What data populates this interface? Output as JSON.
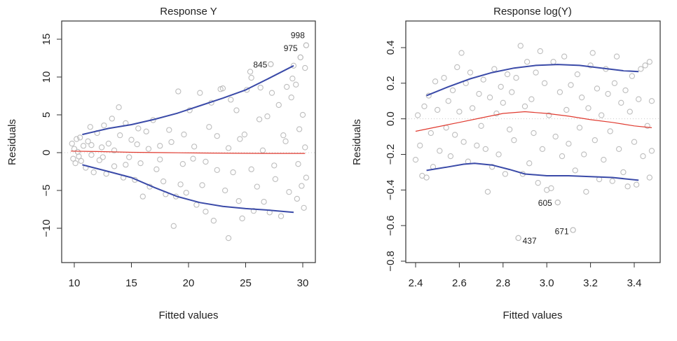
{
  "chart_data": [
    {
      "type": "scatter",
      "title": "Response Y",
      "xlabel": "Fitted values",
      "ylabel": "Residuals",
      "xlim": [
        9.3,
        30.8
      ],
      "ylim": [
        -14,
        17
      ],
      "xticks": [
        "10",
        "15",
        "20",
        "25",
        "30"
      ],
      "yticks": [
        "-10",
        "-5",
        "0",
        "5",
        "10",
        "15"
      ],
      "grid": false,
      "point_color": "#bdbdbd",
      "smooth_color": "#e03a2f",
      "band_color": "#3a4aa8",
      "points": [
        [
          9.8,
          1.2
        ],
        [
          9.9,
          -0.8
        ],
        [
          10.0,
          0.5
        ],
        [
          10.1,
          -1.4
        ],
        [
          10.2,
          1.8
        ],
        [
          10.3,
          0.1
        ],
        [
          10.4,
          -0.5
        ],
        [
          10.5,
          2.0
        ],
        [
          10.6,
          -1.1
        ],
        [
          10.8,
          0.9
        ],
        [
          11.0,
          -2.0
        ],
        [
          11.2,
          1.5
        ],
        [
          11.4,
          3.4
        ],
        [
          11.5,
          -0.3
        ],
        [
          11.7,
          -2.6
        ],
        [
          12.0,
          2.6
        ],
        [
          12.2,
          -1.0
        ],
        [
          12.4,
          0.7
        ],
        [
          12.6,
          3.6
        ],
        [
          12.8,
          -2.8
        ],
        [
          13.0,
          1.2
        ],
        [
          13.3,
          4.5
        ],
        [
          13.5,
          -1.8
        ],
        [
          13.9,
          6.0
        ],
        [
          14.0,
          2.3
        ],
        [
          14.3,
          -3.3
        ],
        [
          14.5,
          3.9
        ],
        [
          14.8,
          -0.6
        ],
        [
          15.0,
          1.7
        ],
        [
          15.3,
          -3.6
        ],
        [
          15.6,
          3.2
        ],
        [
          15.8,
          -1.4
        ],
        [
          16.0,
          -5.8
        ],
        [
          16.3,
          2.8
        ],
        [
          16.6,
          -4.5
        ],
        [
          16.9,
          4.3
        ],
        [
          17.2,
          -2.2
        ],
        [
          17.5,
          0.9
        ],
        [
          17.8,
          -3.8
        ],
        [
          18.0,
          -5.5
        ],
        [
          18.3,
          3.0
        ],
        [
          18.7,
          -9.7
        ],
        [
          18.9,
          -5.8
        ],
        [
          19.1,
          8.1
        ],
        [
          19.3,
          -4.2
        ],
        [
          19.6,
          2.4
        ],
        [
          19.8,
          -5.3
        ],
        [
          20.1,
          5.6
        ],
        [
          20.4,
          -0.8
        ],
        [
          20.7,
          -6.9
        ],
        [
          21.0,
          7.9
        ],
        [
          21.2,
          -4.3
        ],
        [
          21.5,
          -7.8
        ],
        [
          21.8,
          3.4
        ],
        [
          22.0,
          6.6
        ],
        [
          22.2,
          -9.0
        ],
        [
          22.5,
          -2.3
        ],
        [
          22.8,
          8.4
        ],
        [
          23.0,
          8.5
        ],
        [
          23.2,
          -5.0
        ],
        [
          23.5,
          -11.3
        ],
        [
          23.7,
          7.0
        ],
        [
          23.9,
          -2.6
        ],
        [
          24.2,
          5.6
        ],
        [
          24.4,
          -6.4
        ],
        [
          24.7,
          -8.7
        ],
        [
          24.9,
          2.4
        ],
        [
          25.1,
          8.3
        ],
        [
          25.4,
          10.7
        ],
        [
          25.5,
          9.9
        ],
        [
          25.7,
          -7.7
        ],
        [
          26.0,
          -4.5
        ],
        [
          26.2,
          4.4
        ],
        [
          26.3,
          8.6
        ],
        [
          26.6,
          -6.5
        ],
        [
          26.9,
          4.8
        ],
        [
          27.1,
          -7.9
        ],
        [
          27.2,
          11.7
        ],
        [
          27.3,
          7.9
        ],
        [
          27.6,
          -3.5
        ],
        [
          27.9,
          6.3
        ],
        [
          28.1,
          -8.4
        ],
        [
          28.3,
          2.3
        ],
        [
          28.6,
          8.7
        ],
        [
          28.8,
          -5.2
        ],
        [
          29.0,
          7.3
        ],
        [
          29.1,
          9.8
        ],
        [
          29.2,
          11.5
        ],
        [
          29.4,
          9.0
        ],
        [
          29.5,
          -6.1
        ],
        [
          29.7,
          3.1
        ],
        [
          29.8,
          12.6
        ],
        [
          29.9,
          -4.4
        ],
        [
          30.0,
          5.0
        ],
        [
          30.1,
          -7.3
        ],
        [
          30.2,
          11.2
        ],
        [
          30.3,
          14.2
        ],
        [
          30.3,
          -3.3
        ],
        [
          30.2,
          0.7
        ],
        [
          29.6,
          -1.5
        ],
        [
          28.5,
          1.5
        ],
        [
          27.5,
          -1.7
        ],
        [
          26.5,
          0.3
        ],
        [
          25.5,
          -2.2
        ],
        [
          24.5,
          1.8
        ],
        [
          23.5,
          0.6
        ],
        [
          22.5,
          2.2
        ],
        [
          21.5,
          -1.2
        ],
        [
          20.5,
          0.8
        ],
        [
          19.5,
          -1.5
        ],
        [
          18.5,
          1.4
        ],
        [
          17.5,
          -0.9
        ],
        [
          16.5,
          0.5
        ],
        [
          15.5,
          1.1
        ],
        [
          14.5,
          -1.6
        ],
        [
          13.5,
          0.3
        ],
        [
          12.5,
          -0.6
        ],
        [
          11.5,
          1.0
        ]
      ],
      "labeled_points": [
        {
          "label": "998",
          "x": 30.3,
          "y": 14.2
        },
        {
          "label": "975",
          "x": 29.8,
          "y": 12.6
        },
        {
          "label": "845",
          "x": 27.2,
          "y": 11.7
        }
      ],
      "smooth": {
        "x": [
          9.7,
          12,
          15,
          18,
          21,
          24,
          27,
          30.2
        ],
        "y": [
          0.2,
          0.15,
          0.05,
          0.0,
          -0.05,
          -0.08,
          -0.1,
          -0.1
        ]
      },
      "band_upper": {
        "x": [
          10.7,
          13,
          15,
          17,
          19,
          21,
          23,
          25,
          27,
          29.2
        ],
        "y": [
          2.4,
          3.2,
          3.7,
          4.4,
          5.2,
          6.2,
          7.2,
          8.3,
          9.8,
          11.5
        ]
      },
      "band_lower": {
        "x": [
          10.7,
          13,
          15,
          17,
          19,
          21,
          23,
          25,
          27,
          29.2
        ],
        "y": [
          -1.6,
          -2.5,
          -3.3,
          -4.6,
          -5.8,
          -6.6,
          -7.1,
          -7.4,
          -7.6,
          -7.9
        ]
      }
    },
    {
      "type": "scatter",
      "title": "Response log(Y)",
      "xlabel": "Fitted values",
      "ylabel": "Residuals",
      "xlim": [
        2.36,
        3.5
      ],
      "ylim": [
        -0.82,
        0.55
      ],
      "xticks": [
        "2.4",
        "2.6",
        "2.8",
        "3.0",
        "3.2",
        "3.4"
      ],
      "yticks": [
        "-0.8",
        "-0.6",
        "-0.4",
        "-0.2",
        "0.0",
        "0.2",
        "0.4"
      ],
      "grid": false,
      "point_color": "#bdbdbd",
      "smooth_color": "#e03a2f",
      "band_color": "#3a4aa8",
      "points": [
        [
          2.4,
          -0.23
        ],
        [
          2.41,
          0.02
        ],
        [
          2.42,
          -0.15
        ],
        [
          2.43,
          -0.32
        ],
        [
          2.44,
          0.07
        ],
        [
          2.45,
          -0.33
        ],
        [
          2.46,
          0.13
        ],
        [
          2.47,
          -0.08
        ],
        [
          2.48,
          -0.27
        ],
        [
          2.49,
          0.21
        ],
        [
          2.5,
          0.05
        ],
        [
          2.51,
          -0.18
        ],
        [
          2.53,
          0.23
        ],
        [
          2.54,
          -0.05
        ],
        [
          2.55,
          0.1
        ],
        [
          2.56,
          -0.21
        ],
        [
          2.57,
          0.16
        ],
        [
          2.58,
          -0.09
        ],
        [
          2.59,
          0.29
        ],
        [
          2.6,
          0.04
        ],
        [
          2.61,
          0.37
        ],
        [
          2.62,
          -0.13
        ],
        [
          2.63,
          0.2
        ],
        [
          2.64,
          -0.24
        ],
        [
          2.65,
          0.26
        ],
        [
          2.66,
          0.06
        ],
        [
          2.68,
          -0.15
        ],
        [
          2.69,
          0.14
        ],
        [
          2.7,
          -0.04
        ],
        [
          2.71,
          0.22
        ],
        [
          2.72,
          -0.17
        ],
        [
          2.73,
          -0.41
        ],
        [
          2.74,
          0.12
        ],
        [
          2.75,
          -0.27
        ],
        [
          2.76,
          0.28
        ],
        [
          2.77,
          0.03
        ],
        [
          2.78,
          -0.2
        ],
        [
          2.79,
          0.18
        ],
        [
          2.8,
          0.09
        ],
        [
          2.81,
          -0.31
        ],
        [
          2.82,
          0.25
        ],
        [
          2.83,
          -0.06
        ],
        [
          2.84,
          0.15
        ],
        [
          2.85,
          -0.12
        ],
        [
          2.86,
          0.23
        ],
        [
          2.87,
          -0.67
        ],
        [
          2.88,
          0.41
        ],
        [
          2.89,
          -0.31
        ],
        [
          2.9,
          0.07
        ],
        [
          2.91,
          0.32
        ],
        [
          2.92,
          -0.25
        ],
        [
          2.93,
          0.11
        ],
        [
          2.94,
          -0.08
        ],
        [
          2.95,
          0.26
        ],
        [
          2.96,
          -0.36
        ],
        [
          2.97,
          0.38
        ],
        [
          2.98,
          -0.17
        ],
        [
          2.99,
          0.2
        ],
        [
          3.0,
          -0.4
        ],
        [
          3.01,
          0.02
        ],
        [
          3.02,
          -0.39
        ],
        [
          3.03,
          0.32
        ],
        [
          3.04,
          -0.1
        ],
        [
          3.05,
          -0.47
        ],
        [
          3.06,
          0.15
        ],
        [
          3.07,
          -0.21
        ],
        [
          3.08,
          0.35
        ],
        [
          3.09,
          0.05
        ],
        [
          3.1,
          -0.14
        ],
        [
          3.11,
          0.19
        ],
        [
          3.12,
          -0.625
        ],
        [
          3.13,
          -0.29
        ],
        [
          3.14,
          0.25
        ],
        [
          3.15,
          -0.05
        ],
        [
          3.16,
          0.12
        ],
        [
          3.17,
          -0.2
        ],
        [
          3.18,
          -0.41
        ],
        [
          3.19,
          0.06
        ],
        [
          3.2,
          0.3
        ],
        [
          3.21,
          0.37
        ],
        [
          3.22,
          -0.12
        ],
        [
          3.23,
          0.17
        ],
        [
          3.24,
          -0.34
        ],
        [
          3.25,
          0.02
        ],
        [
          3.26,
          -0.23
        ],
        [
          3.27,
          0.28
        ],
        [
          3.28,
          0.14
        ],
        [
          3.29,
          -0.07
        ],
        [
          3.3,
          -0.35
        ],
        [
          3.31,
          0.2
        ],
        [
          3.32,
          0.35
        ],
        [
          3.33,
          -0.17
        ],
        [
          3.34,
          0.09
        ],
        [
          3.35,
          -0.3
        ],
        [
          3.36,
          0.16
        ],
        [
          3.37,
          -0.38
        ],
        [
          3.38,
          0.04
        ],
        [
          3.39,
          0.24
        ],
        [
          3.4,
          -0.13
        ],
        [
          3.41,
          -0.37
        ],
        [
          3.42,
          0.11
        ],
        [
          3.43,
          0.28
        ],
        [
          3.44,
          -0.21
        ],
        [
          3.45,
          0.3
        ],
        [
          3.46,
          -0.04
        ],
        [
          3.47,
          0.32
        ],
        [
          3.47,
          -0.33
        ],
        [
          3.48,
          0.1
        ],
        [
          3.48,
          -0.18
        ]
      ],
      "labeled_points": [
        {
          "label": "605",
          "x": 3.05,
          "y": -0.47
        },
        {
          "label": "671",
          "x": 3.12,
          "y": -0.625
        },
        {
          "label": "437",
          "x": 2.87,
          "y": -0.67
        }
      ],
      "smooth": {
        "x": [
          2.4,
          2.5,
          2.6,
          2.7,
          2.8,
          2.9,
          3.0,
          3.1,
          3.2,
          3.3,
          3.4,
          3.48
        ],
        "y": [
          -0.07,
          -0.045,
          -0.02,
          0.005,
          0.03,
          0.04,
          0.03,
          0.015,
          -0.005,
          -0.02,
          -0.04,
          -0.05
        ]
      },
      "band_upper": {
        "x": [
          2.45,
          2.55,
          2.65,
          2.75,
          2.85,
          2.95,
          3.05,
          3.15,
          3.25,
          3.35,
          3.42
        ],
        "y": [
          0.13,
          0.18,
          0.225,
          0.26,
          0.285,
          0.3,
          0.305,
          0.3,
          0.285,
          0.27,
          0.265
        ]
      },
      "band_lower": {
        "x": [
          2.45,
          2.55,
          2.62,
          2.67,
          2.75,
          2.83,
          2.9,
          3.0,
          3.1,
          3.2,
          3.3,
          3.42
        ],
        "y": [
          -0.29,
          -0.27,
          -0.255,
          -0.25,
          -0.26,
          -0.285,
          -0.31,
          -0.32,
          -0.32,
          -0.325,
          -0.33,
          -0.345
        ]
      }
    }
  ]
}
